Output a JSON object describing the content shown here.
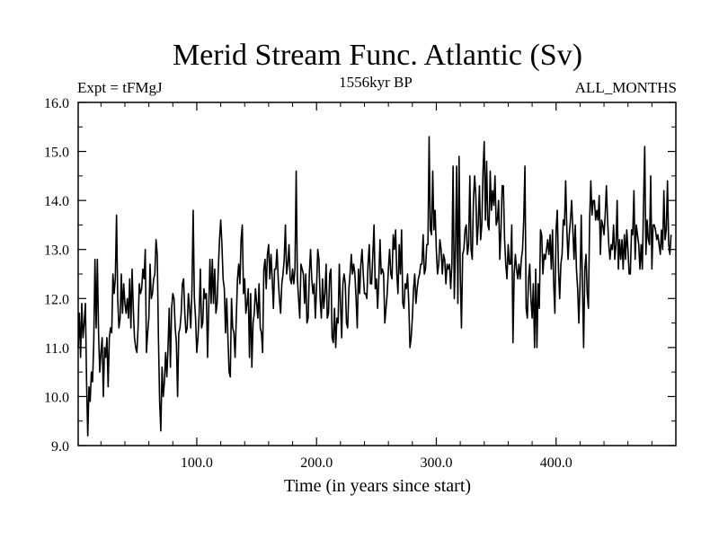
{
  "chart_data": {
    "type": "line",
    "title": "Merid Stream Func. Atlantic (Sv)",
    "subtitle_left": "Expt = tFMgJ",
    "subtitle_center": "1556kyr BP",
    "subtitle_right": "ALL_MONTHS",
    "xlabel": "Time (in years since start)",
    "ylabel": "",
    "xlim": [
      1,
      500
    ],
    "ylim": [
      9.0,
      16.0
    ],
    "x_ticks": [
      100,
      200,
      300,
      400
    ],
    "x_tick_labels": [
      "100.0",
      "200.0",
      "300.0",
      "400.0"
    ],
    "y_ticks": [
      9,
      10,
      11,
      12,
      13,
      14,
      15,
      16
    ],
    "y_tick_labels": [
      "9.0",
      "10.0",
      "11.0",
      "12.0",
      "13.0",
      "14.0",
      "15.0",
      "16.0"
    ],
    "grid": false,
    "line_color": "#000000",
    "series": [
      {
        "name": "Merid Stream Func. Atlantic",
        "x_start": 1,
        "x_step": 1,
        "values": [
          11.0,
          11.7,
          10.8,
          11.9,
          11.2,
          11.5,
          11.9,
          10.3,
          9.2,
          10.2,
          9.9,
          10.5,
          10.3,
          11.1,
          12.8,
          11.4,
          12.8,
          11.3,
          10.5,
          10.9,
          11.2,
          10.0,
          11.0,
          10.8,
          11.2,
          10.2,
          11.2,
          11.4,
          11.3,
          12.5,
          12.1,
          12.4,
          13.7,
          12.0,
          11.4,
          11.6,
          12.5,
          11.7,
          12.3,
          11.9,
          11.7,
          12.0,
          11.6,
          12.4,
          11.4,
          12.6,
          11.8,
          11.2,
          11.0,
          10.9,
          11.4,
          12.3,
          12.1,
          12.2,
          12.6,
          12.4,
          13.0,
          10.9,
          11.3,
          11.6,
          12.7,
          12.0,
          12.1,
          12.4,
          12.5,
          13.2,
          12.9,
          11.2,
          9.9,
          9.3,
          10.6,
          10.0,
          10.3,
          10.9,
          10.4,
          11.0,
          11.8,
          10.6,
          11.8,
          12.1,
          12.0,
          11.4,
          11.1,
          10.0,
          11.3,
          11.4,
          11.7,
          12.3,
          12.4,
          11.7,
          11.3,
          11.4,
          12.1,
          11.8,
          11.4,
          12.2,
          13.8,
          12.0,
          11.6,
          10.9,
          11.2,
          11.7,
          12.6,
          11.4,
          11.5,
          12.2,
          12.0,
          12.1,
          10.8,
          11.8,
          12.8,
          11.9,
          12.8,
          11.9,
          12.6,
          11.7,
          11.9,
          12.6,
          13.2,
          13.6,
          13.1,
          12.4,
          12.2,
          11.3,
          12.0,
          11.2,
          10.5,
          10.4,
          12.0,
          11.4,
          11.3,
          10.8,
          11.6,
          12.4,
          12.7,
          12.3,
          13.2,
          13.5,
          12.1,
          12.4,
          11.7,
          11.9,
          12.2,
          10.8,
          12.1,
          10.6,
          11.5,
          11.7,
          12.2,
          11.9,
          11.6,
          12.3,
          11.4,
          11.3,
          10.9,
          12.6,
          12.8,
          12.2,
          12.9,
          13.1,
          12.4,
          12.9,
          12.4,
          11.8,
          12.6,
          12.6,
          13.0,
          12.4,
          12.0,
          11.7,
          12.3,
          12.5,
          12.8,
          13.5,
          12.5,
          12.7,
          13.1,
          12.4,
          12.3,
          12.6,
          12.3,
          12.6,
          14.6,
          12.4,
          12.0,
          11.6,
          12.7,
          12.6,
          12.5,
          11.9,
          12.5,
          11.5,
          11.6,
          12.5,
          13.0,
          12.4,
          12.1,
          12.3,
          11.6,
          12.2,
          13.0,
          12.8,
          12.0,
          11.6,
          12.4,
          11.8,
          12.1,
          12.7,
          11.6,
          11.7,
          12.5,
          12.6,
          11.2,
          11.1,
          11.8,
          11.0,
          11.6,
          11.5,
          12.7,
          11.9,
          11.2,
          12.3,
          12.5,
          12.3,
          11.5,
          11.4,
          12.2,
          12.5,
          12.9,
          12.5,
          12.7,
          12.5,
          12.0,
          11.4,
          12.6,
          12.1,
          12.7,
          13.0,
          12.5,
          12.1,
          12.1,
          12.0,
          12.7,
          13.1,
          12.3,
          12.3,
          12.9,
          13.5,
          12.2,
          12.4,
          11.8,
          12.4,
          13.2,
          12.5,
          12.6,
          12.5,
          11.5,
          11.8,
          12.1,
          12.6,
          13.0,
          12.5,
          12.4,
          13.3,
          13.0,
          13.4,
          12.5,
          12.1,
          13.1,
          12.5,
          13.4,
          11.9,
          11.8,
          12.3,
          12.2,
          12.5,
          11.9,
          11.0,
          11.2,
          11.6,
          12.2,
          12.5,
          11.9,
          12.2,
          12.4,
          12.5,
          12.7,
          12.7,
          13.3,
          12.5,
          12.6,
          13.1,
          13.1,
          15.3,
          13.4,
          13.3,
          14.6,
          13.4,
          13.8,
          13.0,
          12.5,
          12.7,
          13.2,
          13.0,
          12.5,
          12.9,
          12.8,
          12.3,
          12.7,
          12.6,
          12.7,
          12.2,
          12.7,
          14.7,
          12.0,
          13.0,
          14.7,
          11.9,
          14.9,
          12.5,
          11.4,
          12.9,
          13.0,
          13.4,
          13.5,
          12.9,
          13.1,
          14.5,
          13.0,
          12.8,
          14.0,
          14.5,
          14.1,
          13.1,
          13.5,
          14.3,
          13.2,
          13.5,
          14.6,
          15.2,
          13.6,
          14.8,
          13.5,
          13.4,
          14.6,
          13.8,
          14.2,
          13.9,
          14.5,
          13.5,
          13.6,
          14.0,
          12.8,
          13.4,
          14.3,
          14.3,
          13.2,
          12.7,
          12.4,
          13.1,
          12.7,
          12.7,
          13.5,
          11.1,
          12.5,
          12.9,
          12.6,
          12.4,
          12.7,
          12.4,
          12.8,
          13.0,
          13.6,
          14.7,
          11.8,
          11.6,
          12.4,
          12.7,
          12.0,
          11.6,
          12.3,
          11.0,
          12.6,
          11.0,
          12.3,
          11.8,
          13.4,
          13.3,
          12.5,
          12.9,
          12.8,
          13.0,
          13.2,
          12.9,
          13.3,
          12.6,
          13.4,
          12.3,
          11.7,
          13.4,
          13.8,
          12.6,
          12.0,
          12.7,
          12.9,
          13.6,
          13.5,
          14.4,
          13.4,
          12.8,
          13.3,
          13.6,
          14.0,
          13.4,
          12.8,
          13.5,
          12.6,
          12.2,
          11.5,
          12.3,
          13.7,
          12.3,
          11.0,
          12.6,
          12.9,
          12.1,
          11.8,
          13.6,
          14.4,
          13.7,
          14.0,
          14.0,
          13.6,
          13.8,
          13.6,
          14.1,
          12.9,
          13.6,
          13.5,
          13.3,
          13.7,
          14.3,
          13.6,
          13.1,
          12.8,
          13.1,
          13.0,
          13.5,
          12.8,
          13.1,
          14.0,
          12.6,
          13.2,
          12.8,
          13.2,
          12.6,
          13.3,
          12.8,
          13.4,
          13.0,
          12.5,
          12.5,
          13.4,
          13.3,
          14.2,
          12.8,
          13.5,
          13.3,
          13.1,
          12.6,
          13.1,
          12.6,
          13.9,
          15.1,
          12.9,
          13.6,
          13.2,
          13.1,
          14.5,
          12.6,
          13.5,
          13.5,
          13.4,
          13.2,
          13.3,
          13.1,
          12.9,
          13.4,
          13.0,
          14.2,
          13.2,
          13.4,
          14.4,
          13.1,
          12.9,
          13.3
        ]
      }
    ]
  }
}
